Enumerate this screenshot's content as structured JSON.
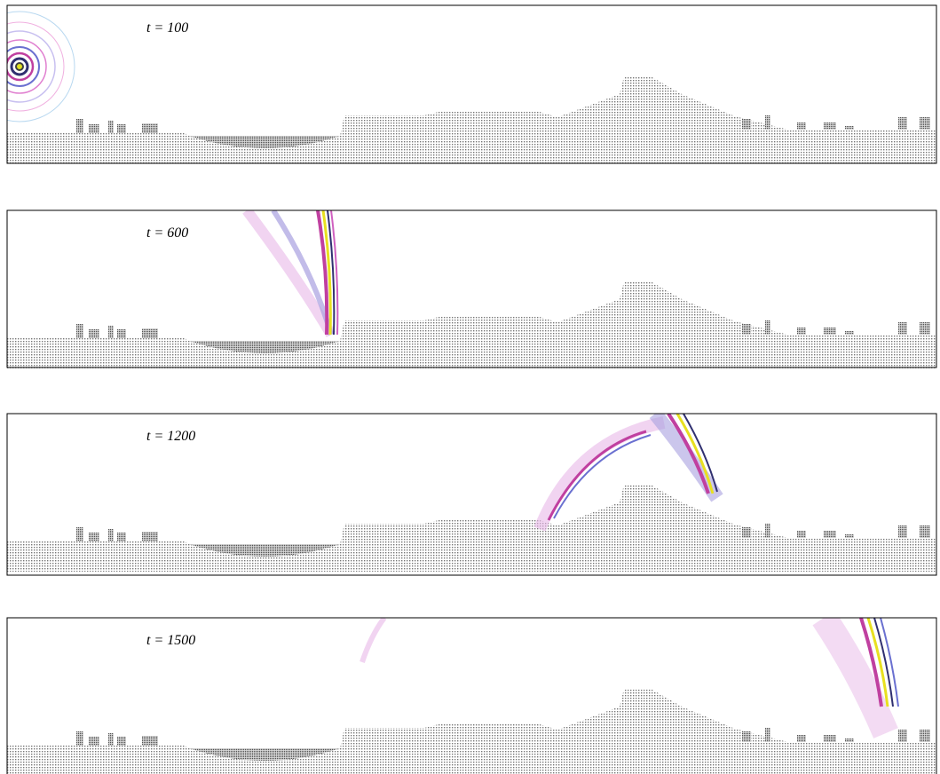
{
  "panels": [
    {
      "label": "t = 100"
    },
    {
      "label": "t = 600"
    },
    {
      "label": "t = 1200"
    },
    {
      "label": "t = 1500"
    }
  ]
}
